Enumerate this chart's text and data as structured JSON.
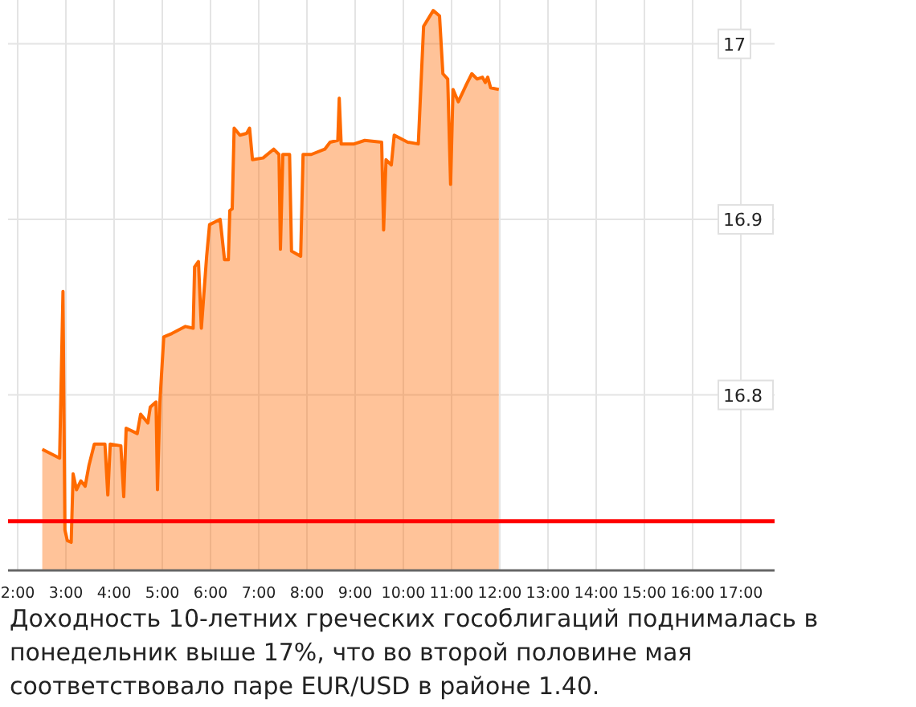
{
  "chart_data": {
    "type": "area",
    "x": [
      2.51,
      2.87,
      2.94,
      2.98,
      3.03,
      3.11,
      3.15,
      3.22,
      3.31,
      3.4,
      3.48,
      3.59,
      3.81,
      3.87,
      3.92,
      4.14,
      4.2,
      4.25,
      4.48,
      4.55,
      4.7,
      4.75,
      4.87,
      4.9,
      4.95,
      5.03,
      5.2,
      5.48,
      5.64,
      5.67,
      5.75,
      5.81,
      5.92,
      5.98,
      6.2,
      6.29,
      6.37,
      6.4,
      6.45,
      6.49,
      6.61,
      6.75,
      6.81,
      6.87,
      7.09,
      7.31,
      7.42,
      7.45,
      7.5,
      7.64,
      7.68,
      7.87,
      7.92,
      8.09,
      8.37,
      8.48,
      8.64,
      8.67,
      8.71,
      8.98,
      9.2,
      9.55,
      9.59,
      9.64,
      9.75,
      9.81,
      10.09,
      10.31,
      10.42,
      10.62,
      10.75,
      10.82,
      10.92,
      10.98,
      11.03,
      11.14,
      11.31,
      11.42,
      11.53,
      11.64,
      11.7,
      11.75,
      11.81,
      11.98
    ],
    "series": [
      {
        "color": "#ff6a00",
        "values": [
          16.769,
          16.764,
          16.859,
          16.723,
          16.717,
          16.716,
          16.755,
          16.746,
          16.751,
          16.748,
          16.76,
          16.772,
          16.772,
          16.743,
          16.772,
          16.771,
          16.742,
          16.781,
          16.778,
          16.789,
          16.784,
          16.793,
          16.796,
          16.746,
          16.796,
          16.833,
          16.835,
          16.839,
          16.838,
          16.873,
          16.876,
          16.838,
          16.879,
          16.897,
          16.9,
          16.877,
          16.877,
          16.905,
          16.906,
          16.952,
          16.948,
          16.949,
          16.952,
          16.934,
          16.935,
          16.94,
          16.937,
          16.883,
          16.937,
          16.937,
          16.882,
          16.879,
          16.937,
          16.937,
          16.94,
          16.944,
          16.945,
          16.969,
          16.943,
          16.943,
          16.945,
          16.944,
          16.894,
          16.934,
          16.931,
          16.948,
          16.944,
          16.943,
          17.01,
          17.019,
          17.016,
          16.983,
          16.98,
          16.92,
          16.974,
          16.967,
          16.977,
          16.983,
          16.98,
          16.981,
          16.978,
          16.981,
          16.975,
          16.974
        ]
      }
    ],
    "xlim": [
      1.8,
      17.7
    ],
    "xticks": [
      {
        "value": 2,
        "label": "2:00"
      },
      {
        "value": 3,
        "label": "3:00"
      },
      {
        "value": 4,
        "label": "4:00"
      },
      {
        "value": 5,
        "label": "5:00"
      },
      {
        "value": 6,
        "label": "6:00"
      },
      {
        "value": 7,
        "label": "7:00"
      },
      {
        "value": 8,
        "label": "8:00"
      },
      {
        "value": 9,
        "label": "9:00"
      },
      {
        "value": 10,
        "label": "10:00"
      },
      {
        "value": 11,
        "label": "11:00"
      },
      {
        "value": 12,
        "label": "12:00"
      },
      {
        "value": 13,
        "label": "13:00"
      },
      {
        "value": 14,
        "label": "14:00"
      },
      {
        "value": 15,
        "label": "15:00"
      },
      {
        "value": 16,
        "label": "16:00"
      },
      {
        "value": 17,
        "label": "17:00"
      }
    ],
    "ylim": [
      16.7,
      17.025
    ],
    "yticks": [
      16.8,
      16.9,
      17
    ],
    "grid": true,
    "ref_lines": [
      {
        "axis": "y",
        "value": 16.728,
        "color": "#ff0000"
      }
    ],
    "annotations": [
      "Доходность 10-летних греческих гособлигаций поднималась в понедельник выше 17%, что во второй половине мая соответствовало паре EUR/USD в районе 1.40."
    ]
  }
}
